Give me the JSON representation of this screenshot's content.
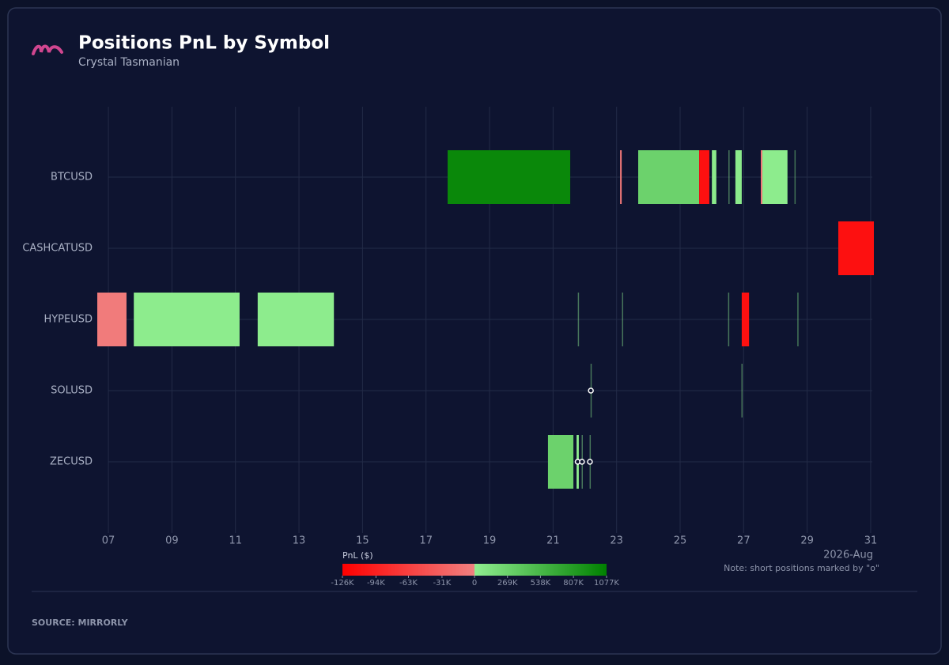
{
  "chart_data": {
    "type": "timeline",
    "title": "Positions PnL by Symbol",
    "subtitle": "Crystal Tasmanian",
    "x_label": "2026-Aug",
    "xlim": [
      6.6,
      31.1
    ],
    "xticks": [
      {
        "value": 7,
        "label": "07"
      },
      {
        "value": 9,
        "label": "09"
      },
      11,
      13,
      15,
      17,
      19,
      21,
      23,
      25,
      27,
      29,
      31
    ],
    "grid": true,
    "colorbar": {
      "title": "PnL ($)",
      "range": [
        -126000,
        1077000
      ],
      "colors": [
        "#ff0000",
        "#f08080",
        "#90ee90",
        "#008000"
      ],
      "ticks": [
        {
          "value": -126000,
          "label": "-126K"
        },
        {
          "value": -94000,
          "label": "-94K"
        },
        {
          "value": -63000,
          "label": "-63K"
        },
        {
          "value": -31000,
          "label": "-31K"
        },
        0,
        {
          "value": 269000,
          "label": "269K"
        },
        {
          "value": 538000,
          "label": "538K"
        },
        {
          "value": 807000,
          "label": "807K"
        },
        {
          "value": 1077000,
          "label": "1077K"
        }
      ]
    },
    "note": "Note: short positions marked by \"o\"",
    "source": "SOURCE: MIRRORLY",
    "series": [
      {
        "name": "BTCUSD",
        "bars": [
          {
            "start": 17.68,
            "end": 21.54,
            "pnl": 1000000,
            "short": false
          },
          {
            "start": 23.11,
            "end": 23.16,
            "pnl": -8000,
            "short": false
          },
          {
            "start": 23.68,
            "end": 25.6,
            "pnl": 270000,
            "short": false
          },
          {
            "start": 25.6,
            "end": 25.92,
            "pnl": -110000,
            "short": false
          },
          {
            "start": 26.0,
            "end": 26.14,
            "pnl": 40000,
            "short": false
          },
          {
            "start": 26.52,
            "end": 26.55,
            "pnl": 2000,
            "short": false
          },
          {
            "start": 26.74,
            "end": 26.94,
            "pnl": 40000,
            "short": false
          },
          {
            "start": 27.54,
            "end": 27.59,
            "pnl": -8000,
            "short": false
          },
          {
            "start": 27.59,
            "end": 28.38,
            "pnl": 20000,
            "short": false
          },
          {
            "start": 28.6,
            "end": 28.63,
            "pnl": 100000,
            "short": false
          }
        ]
      },
      {
        "name": "CASHCATUSD",
        "bars": [
          {
            "start": 29.98,
            "end": 31.1,
            "pnl": -110000,
            "short": false
          }
        ]
      },
      {
        "name": "HYPEUSD",
        "bars": [
          {
            "start": 6.65,
            "end": 7.57,
            "pnl": -5000,
            "short": false
          },
          {
            "start": 7.8,
            "end": 11.13,
            "pnl": 20000,
            "short": false
          },
          {
            "start": 11.7,
            "end": 14.1,
            "pnl": 20000,
            "short": false
          },
          {
            "start": 21.78,
            "end": 21.8,
            "pnl": 3000,
            "short": false
          },
          {
            "start": 23.17,
            "end": 23.19,
            "pnl": 3000,
            "short": false
          },
          {
            "start": 26.51,
            "end": 26.53,
            "pnl": 3000,
            "short": false
          },
          {
            "start": 26.94,
            "end": 27.17,
            "pnl": -110000,
            "short": false
          },
          {
            "start": 28.69,
            "end": 28.72,
            "pnl": 60000,
            "short": false
          }
        ]
      },
      {
        "name": "SOLUSD",
        "bars": [
          {
            "start": 22.18,
            "end": 22.2,
            "pnl": 3000,
            "short": true
          },
          {
            "start": 26.93,
            "end": 26.95,
            "pnl": 1000,
            "short": false
          }
        ]
      },
      {
        "name": "ZECUSD",
        "bars": [
          {
            "start": 20.84,
            "end": 21.64,
            "pnl": 270000,
            "short": false
          },
          {
            "start": 21.74,
            "end": 21.81,
            "pnl": 20000,
            "short": true
          },
          {
            "start": 21.9,
            "end": 21.92,
            "pnl": 3000,
            "short": true
          },
          {
            "start": 22.15,
            "end": 22.17,
            "pnl": 30000,
            "short": true
          }
        ]
      }
    ]
  }
}
